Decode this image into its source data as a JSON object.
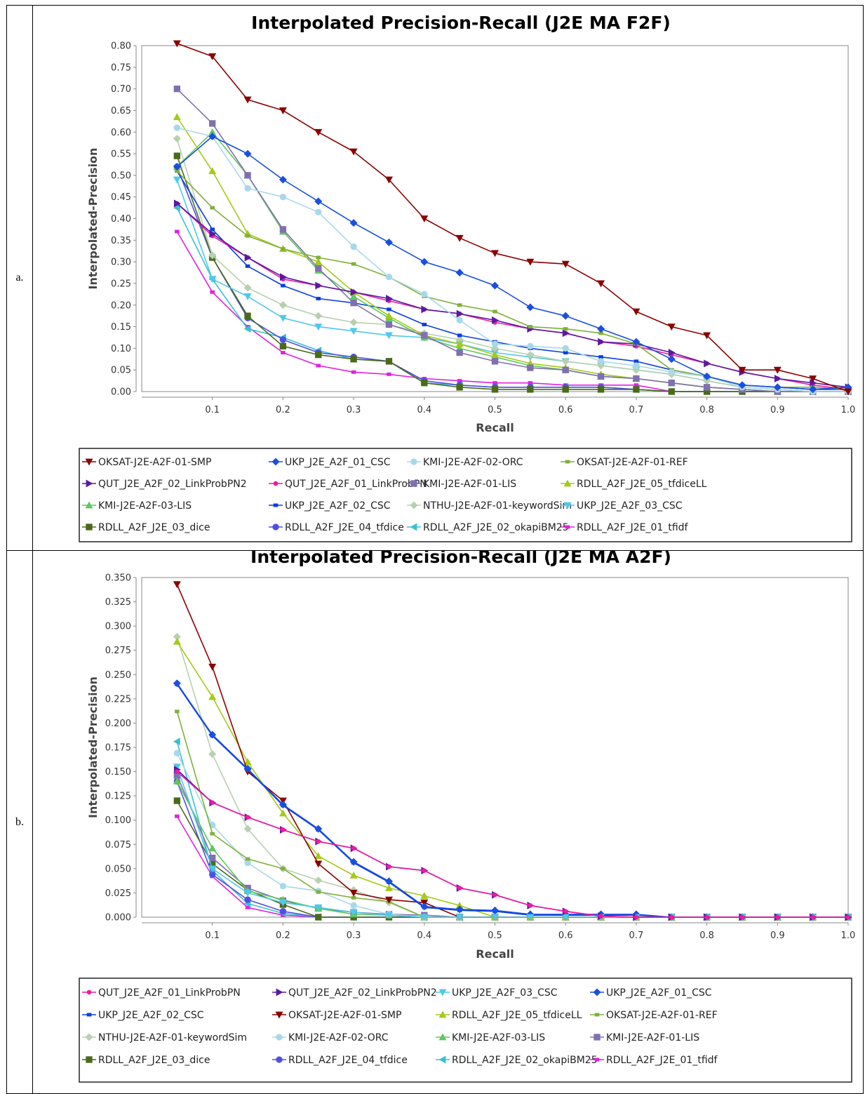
{
  "labels": {
    "a": "a.",
    "b": "b."
  },
  "chart_data": [
    {
      "type": "line",
      "title": "Interpolated Precision-Recall (J2E MA F2F)",
      "xlabel": "Recall",
      "ylabel": "Interpolated-Precision",
      "xlim": [
        0.0,
        1.0
      ],
      "ylim": [
        0.0,
        0.8
      ],
      "xticks": [
        "0.1",
        "0.2",
        "0.3",
        "0.4",
        "0.5",
        "0.6",
        "0.7",
        "0.8",
        "0.9",
        "1.0"
      ],
      "yticks": [
        "0.00",
        "0.05",
        "0.10",
        "0.15",
        "0.20",
        "0.25",
        "0.30",
        "0.35",
        "0.40",
        "0.45",
        "0.50",
        "0.55",
        "0.60",
        "0.65",
        "0.70",
        "0.75",
        "0.80"
      ],
      "legend_position": "bottom",
      "x": [
        0.05,
        0.1,
        0.15,
        0.2,
        0.25,
        0.3,
        0.35,
        0.4,
        0.45,
        0.5,
        0.55,
        0.6,
        0.65,
        0.7,
        0.75,
        0.8,
        0.85,
        0.9,
        0.95,
        1.0
      ],
      "series": [
        {
          "name": "OKSAT-J2E-A2F-01-SMP",
          "color": "#8b0000",
          "marker": "tri-down",
          "values": [
            0.805,
            0.775,
            0.675,
            0.65,
            0.6,
            0.555,
            0.49,
            0.4,
            0.355,
            0.32,
            0.3,
            0.295,
            0.25,
            0.185,
            0.15,
            0.13,
            0.05,
            0.05,
            0.03,
            0.0
          ]
        },
        {
          "name": "UKP_J2E_A2F_01_CSC",
          "color": "#1a4fe0",
          "marker": "diamond",
          "values": [
            0.52,
            0.59,
            0.55,
            0.49,
            0.44,
            0.39,
            0.345,
            0.3,
            0.275,
            0.245,
            0.195,
            0.175,
            0.145,
            0.115,
            0.075,
            0.035,
            0.015,
            0.01,
            0.005,
            0.01
          ]
        },
        {
          "name": "KMI-J2E-A2F-02-ORC",
          "color": "#a8d8ea",
          "marker": "circle",
          "values": [
            0.61,
            0.59,
            0.47,
            0.45,
            0.415,
            0.335,
            0.265,
            0.225,
            0.165,
            0.11,
            0.105,
            0.1,
            0.07,
            0.06,
            0.045,
            0.035,
            0.01,
            0.005,
            0.0,
            0.0
          ]
        },
        {
          "name": "OKSAT-J2E-A2F-01-REF",
          "color": "#7fb03a",
          "marker": "square-small",
          "values": [
            0.51,
            0.425,
            0.36,
            0.33,
            0.31,
            0.295,
            0.265,
            0.22,
            0.2,
            0.185,
            0.15,
            0.145,
            0.135,
            0.11,
            0.05,
            0.035,
            0.015,
            0.01,
            0.01,
            0.005
          ]
        },
        {
          "name": "QUT_J2E_A2F_02_LinkProbPN2",
          "color": "#5a1aa0",
          "marker": "tri-right",
          "values": [
            0.435,
            0.365,
            0.31,
            0.265,
            0.245,
            0.23,
            0.215,
            0.19,
            0.18,
            0.165,
            0.145,
            0.135,
            0.115,
            0.11,
            0.09,
            0.065,
            0.045,
            0.03,
            0.02,
            0.01
          ]
        },
        {
          "name": "QUT_J2E_A2F_01_LinkProbPN",
          "color": "#ee1aa0",
          "marker": "circle-small",
          "values": [
            0.435,
            0.36,
            0.31,
            0.26,
            0.245,
            0.23,
            0.21,
            0.19,
            0.18,
            0.16,
            0.145,
            0.135,
            0.115,
            0.105,
            0.085,
            0.065,
            0.045,
            0.03,
            0.015,
            0.005
          ]
        },
        {
          "name": "KMI-J2E-A2F-01-LIS",
          "color": "#8070b0",
          "marker": "square",
          "values": [
            0.7,
            0.62,
            0.5,
            0.375,
            0.285,
            0.205,
            0.155,
            0.13,
            0.09,
            0.07,
            0.055,
            0.05,
            0.035,
            0.03,
            0.02,
            0.01,
            0.005,
            0.0,
            0.0,
            0.0
          ]
        },
        {
          "name": "RDLL_A2F_J2E_05_tfdiceLL",
          "color": "#a4c918",
          "marker": "tri-up",
          "values": [
            0.635,
            0.51,
            0.365,
            0.33,
            0.3,
            0.23,
            0.175,
            0.13,
            0.11,
            0.085,
            0.065,
            0.055,
            0.04,
            0.03,
            0.02,
            0.01,
            0.005,
            0.0,
            0.0,
            0.0
          ]
        },
        {
          "name": "KMI-J2E-A2F-03-LIS",
          "color": "#5ec85e",
          "marker": "tri-up",
          "values": [
            0.52,
            0.6,
            0.5,
            0.37,
            0.28,
            0.22,
            0.17,
            0.125,
            0.1,
            0.08,
            0.06,
            0.05,
            0.035,
            0.03,
            0.02,
            0.01,
            0.005,
            0.0,
            0.0,
            0.0
          ]
        },
        {
          "name": "UKP_J2E_A2F_02_CSC",
          "color": "#0a3ee0",
          "marker": "square-small",
          "values": [
            0.51,
            0.375,
            0.29,
            0.245,
            0.215,
            0.205,
            0.19,
            0.155,
            0.13,
            0.115,
            0.1,
            0.09,
            0.08,
            0.07,
            0.05,
            0.035,
            0.015,
            0.01,
            0.005,
            0.005
          ]
        },
        {
          "name": "NTHU-J2E-A2F-01-keywordSim",
          "color": "#b8d0b0",
          "marker": "diamond",
          "values": [
            0.585,
            0.315,
            0.24,
            0.2,
            0.175,
            0.16,
            0.155,
            0.135,
            0.12,
            0.1,
            0.085,
            0.07,
            0.06,
            0.05,
            0.04,
            0.025,
            0.01,
            0.005,
            0.0,
            0.0
          ]
        },
        {
          "name": "UKP_J2E_A2F_03_CSC",
          "color": "#4fc8ea",
          "marker": "tri-down",
          "values": [
            0.49,
            0.26,
            0.22,
            0.17,
            0.15,
            0.14,
            0.13,
            0.125,
            0.11,
            0.09,
            0.08,
            0.07,
            0.06,
            0.05,
            0.04,
            0.025,
            0.01,
            0.005,
            0.0,
            0.0
          ]
        },
        {
          "name": "RDLL_A2F_J2E_03_dice",
          "color": "#4a6a1a",
          "marker": "square",
          "values": [
            0.545,
            0.31,
            0.175,
            0.105,
            0.085,
            0.075,
            0.07,
            0.02,
            0.01,
            0.005,
            0.005,
            0.005,
            0.005,
            0.005,
            0.0,
            0.0,
            0.0,
            0.0,
            0.0,
            0.0
          ]
        },
        {
          "name": "RDLL_A2F_J2E_04_tfdice",
          "color": "#5050e0",
          "marker": "circle",
          "values": [
            0.52,
            0.31,
            0.17,
            0.12,
            0.09,
            0.08,
            0.07,
            0.025,
            0.015,
            0.01,
            0.01,
            0.01,
            0.01,
            0.005,
            0.0,
            0.0,
            0.0,
            0.0,
            0.0,
            0.0
          ]
        },
        {
          "name": "RDLL_A2F_J2E_02_okapiBM25",
          "color": "#3ac0d0",
          "marker": "tri-left",
          "values": [
            0.425,
            0.26,
            0.145,
            0.125,
            0.095,
            0.075,
            0.07,
            0.02,
            0.015,
            0.01,
            0.01,
            0.01,
            0.01,
            0.005,
            0.0,
            0.0,
            0.0,
            0.0,
            0.0,
            0.0
          ]
        },
        {
          "name": "RDLL_A2F_J2E_01_tfidf",
          "color": "#e020e0",
          "marker": "square-small",
          "values": [
            0.37,
            0.23,
            0.15,
            0.09,
            0.06,
            0.045,
            0.04,
            0.03,
            0.025,
            0.02,
            0.02,
            0.015,
            0.015,
            0.015,
            0.0,
            0.0,
            0.0,
            0.0,
            0.0,
            0.0
          ]
        }
      ]
    },
    {
      "type": "line",
      "title": "Interpolated Precision-Recall (J2E MA A2F)",
      "xlabel": "Recall",
      "ylabel": "Interpolated-Precision",
      "xlim": [
        0.0,
        1.0
      ],
      "ylim": [
        0.0,
        0.35
      ],
      "xticks": [
        "0.1",
        "0.2",
        "0.3",
        "0.4",
        "0.5",
        "0.6",
        "0.7",
        "0.8",
        "0.9",
        "1.0"
      ],
      "yticks": [
        "0.000",
        "0.025",
        "0.050",
        "0.075",
        "0.100",
        "0.125",
        "0.150",
        "0.175",
        "0.200",
        "0.225",
        "0.250",
        "0.275",
        "0.300",
        "0.325",
        "0.350"
      ],
      "legend_position": "bottom",
      "x": [
        0.05,
        0.1,
        0.15,
        0.2,
        0.25,
        0.3,
        0.35,
        0.4,
        0.45,
        0.5,
        0.55,
        0.6,
        0.65,
        0.7,
        0.75,
        0.8,
        0.85,
        0.9,
        0.95,
        1.0
      ],
      "series": [
        {
          "name": "QUT_J2E_A2F_01_LinkProbPN",
          "color": "#ee1aa0",
          "marker": "circle-small",
          "values": [
            0.15,
            0.118,
            0.103,
            0.09,
            0.078,
            0.071,
            0.052,
            0.048,
            0.03,
            0.023,
            0.012,
            0.006,
            0.001,
            0.0,
            0.0,
            0.0,
            0.0,
            0.0,
            0.0,
            0.0
          ]
        },
        {
          "name": "QUT_J2E_A2F_02_LinkProbPN2",
          "color": "#5a1aa0",
          "marker": "tri-right",
          "values": [
            0.152,
            0.118,
            0.103,
            0.09,
            0.078,
            0.071,
            0.052,
            0.048,
            0.03,
            0.023,
            0.012,
            0.006,
            0.001,
            0.0,
            0.0,
            0.0,
            0.0,
            0.0,
            0.0,
            0.0
          ]
        },
        {
          "name": "UKP_J2E_A2F_03_CSC",
          "color": "#4fc8ea",
          "marker": "tri-down",
          "values": [
            0.155,
            0.05,
            0.025,
            0.015,
            0.01,
            0.005,
            0.002,
            0.0,
            0.0,
            0.0,
            0.0,
            0.0,
            0.0,
            0.0,
            0.0,
            0.0,
            0.0,
            0.0,
            0.0,
            0.0
          ]
        },
        {
          "name": "UKP_J2E_A2F_01_CSC",
          "color": "#1a4fe0",
          "marker": "diamond",
          "values": [
            0.241,
            0.188,
            0.153,
            0.116,
            0.091,
            0.057,
            0.037,
            0.011,
            0.008,
            0.007,
            0.003,
            0.003,
            0.003,
            0.003,
            0.0,
            0.0,
            0.0,
            0.0,
            0.0,
            0.0
          ]
        },
        {
          "name": "UKP_J2E_A2F_02_CSC",
          "color": "#0a3ee0",
          "marker": "square-small",
          "values": [
            0.24,
            0.187,
            0.152,
            0.115,
            0.09,
            0.056,
            0.036,
            0.01,
            0.007,
            0.006,
            0.002,
            0.002,
            0.002,
            0.002,
            0.0,
            0.0,
            0.0,
            0.0,
            0.0,
            0.0
          ]
        },
        {
          "name": "OKSAT-J2E-A2F-01-SMP",
          "color": "#8b0000",
          "marker": "tri-down",
          "values": [
            0.343,
            0.258,
            0.15,
            0.12,
            0.055,
            0.025,
            0.018,
            0.015,
            0.0,
            0.0,
            0.0,
            0.0,
            0.0,
            0.0,
            0.0,
            0.0,
            0.0,
            0.0,
            0.0,
            0.0
          ]
        },
        {
          "name": "RDLL_A2F_J2E_05_tfdiceLL",
          "color": "#a4c918",
          "marker": "tri-up",
          "values": [
            0.284,
            0.227,
            0.16,
            0.107,
            0.063,
            0.043,
            0.03,
            0.022,
            0.012,
            0.0,
            0.0,
            0.0,
            0.0,
            0.0,
            0.0,
            0.0,
            0.0,
            0.0,
            0.0,
            0.0
          ]
        },
        {
          "name": "OKSAT-J2E-A2F-01-REF",
          "color": "#7fb03a",
          "marker": "square-small",
          "values": [
            0.212,
            0.086,
            0.06,
            0.05,
            0.026,
            0.02,
            0.016,
            0.0,
            0.0,
            0.0,
            0.0,
            0.0,
            0.0,
            0.0,
            0.0,
            0.0,
            0.0,
            0.0,
            0.0,
            0.0
          ]
        },
        {
          "name": "NTHU-J2E-A2F-01-keywordSim",
          "color": "#b8d0b0",
          "marker": "diamond",
          "values": [
            0.289,
            0.168,
            0.091,
            0.05,
            0.038,
            0.028,
            0.015,
            0.0,
            0.0,
            0.0,
            0.0,
            0.0,
            0.0,
            0.0,
            0.0,
            0.0,
            0.0,
            0.0,
            0.0,
            0.0
          ]
        },
        {
          "name": "KMI-J2E-A2F-02-ORC",
          "color": "#a8d8ea",
          "marker": "circle",
          "values": [
            0.169,
            0.095,
            0.056,
            0.032,
            0.027,
            0.012,
            0.003,
            0.0,
            0.0,
            0.0,
            0.0,
            0.0,
            0.0,
            0.0,
            0.0,
            0.0,
            0.0,
            0.0,
            0.0,
            0.0
          ]
        },
        {
          "name": "KMI-J2E-A2F-03-LIS",
          "color": "#5ec85e",
          "marker": "tri-up",
          "values": [
            0.14,
            0.071,
            0.027,
            0.018,
            0.009,
            0.003,
            0.002,
            0.0,
            0.0,
            0.0,
            0.0,
            0.0,
            0.0,
            0.0,
            0.0,
            0.0,
            0.0,
            0.0,
            0.0,
            0.0
          ]
        },
        {
          "name": "KMI-J2E-A2F-01-LIS",
          "color": "#8070b0",
          "marker": "square",
          "values": [
            0.146,
            0.061,
            0.03,
            0.017,
            0.009,
            0.005,
            0.003,
            0.002,
            0.0,
            0.0,
            0.0,
            0.0,
            0.0,
            0.0,
            0.0,
            0.0,
            0.0,
            0.0,
            0.0,
            0.0
          ]
        },
        {
          "name": "RDLL_A2F_J2E_03_dice",
          "color": "#4a6a1a",
          "marker": "square",
          "values": [
            0.12,
            0.055,
            0.028,
            0.013,
            0.0,
            0.0,
            0.0,
            0.0,
            0.0,
            0.0,
            0.0,
            0.0,
            0.0,
            0.0,
            0.0,
            0.0,
            0.0,
            0.0,
            0.0,
            0.0
          ]
        },
        {
          "name": "RDLL_A2F_J2E_04_tfdice",
          "color": "#5050e0",
          "marker": "circle",
          "values": [
            0.14,
            0.044,
            0.018,
            0.006,
            0.0,
            0.0,
            0.0,
            0.0,
            0.0,
            0.0,
            0.0,
            0.0,
            0.0,
            0.0,
            0.0,
            0.0,
            0.0,
            0.0,
            0.0,
            0.0
          ]
        },
        {
          "name": "RDLL_A2F_J2E_02_okapiBM25",
          "color": "#3ac0d0",
          "marker": "tri-left",
          "values": [
            0.181,
            0.048,
            0.014,
            0.004,
            0.0,
            0.0,
            0.0,
            0.0,
            0.0,
            0.0,
            0.0,
            0.0,
            0.0,
            0.0,
            0.0,
            0.0,
            0.0,
            0.0,
            0.0,
            0.0
          ]
        },
        {
          "name": "RDLL_A2F_J2E_01_tfidf",
          "color": "#e020e0",
          "marker": "square-small",
          "values": [
            0.104,
            0.042,
            0.01,
            0.002,
            0.0,
            0.0,
            0.0,
            0.0,
            0.0,
            0.0,
            0.0,
            0.0,
            0.0,
            0.0,
            0.0,
            0.0,
            0.0,
            0.0,
            0.0,
            0.0
          ]
        }
      ]
    }
  ]
}
